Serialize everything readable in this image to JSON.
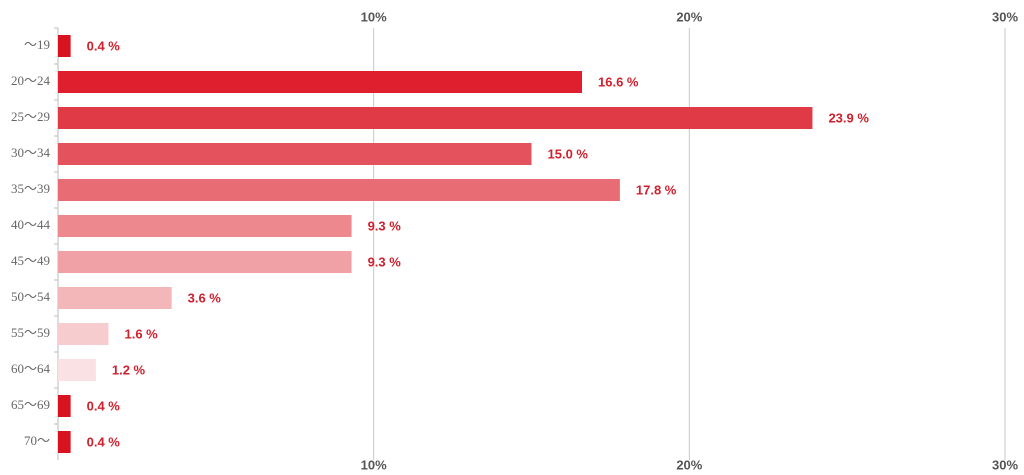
{
  "chart_data": {
    "type": "hbar",
    "categories": [
      "～19",
      "20～24",
      "25～29",
      "30～34",
      "35～39",
      "40～44",
      "45～49",
      "50～54",
      "55～59",
      "60～64",
      "65～69",
      "70～"
    ],
    "values": [
      0.4,
      16.6,
      23.9,
      15.0,
      17.8,
      9.3,
      9.3,
      3.6,
      1.6,
      1.2,
      0.4,
      0.4
    ],
    "value_labels": [
      "0.4 %",
      "16.6 %",
      "23.9 %",
      "15.0 %",
      "17.8 %",
      "9.3 %",
      "9.3 %",
      "3.6 %",
      "1.6 %",
      "1.2 %",
      "0.4 %",
      "0.4 %"
    ],
    "colors": [
      "#d8131f",
      "#df1f2e",
      "#e13a47",
      "#e4535d",
      "#e86c74",
      "#ec888e",
      "#f0a1a5",
      "#f3b6b9",
      "#f7ccce",
      "#fae1e3",
      "#d8131f",
      "#d8131f"
    ],
    "xlim": [
      0,
      30
    ],
    "xticks": [
      {
        "value": 10,
        "label": "10%"
      },
      {
        "value": 20,
        "label": "20%"
      },
      {
        "value": 30,
        "label": "30%"
      }
    ],
    "grid": true
  }
}
